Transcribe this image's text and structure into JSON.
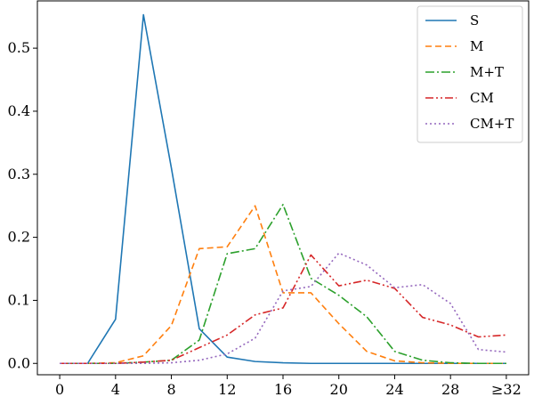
{
  "chart_data": {
    "type": "line",
    "x": [
      0,
      2,
      4,
      6,
      8,
      10,
      12,
      14,
      16,
      18,
      20,
      22,
      24,
      26,
      28,
      30,
      32
    ],
    "xticks": [
      {
        "value": 0,
        "label": "0"
      },
      {
        "value": 4,
        "label": "4"
      },
      {
        "value": 8,
        "label": "8"
      },
      {
        "value": 12,
        "label": "12"
      },
      {
        "value": 16,
        "label": "16"
      },
      {
        "value": 20,
        "label": "20"
      },
      {
        "value": 24,
        "label": "24"
      },
      {
        "value": 28,
        "label": "28"
      },
      {
        "value": 32,
        "label": "≥32"
      }
    ],
    "yticks": [
      {
        "value": 0.0,
        "label": "0.0"
      },
      {
        "value": 0.1,
        "label": "0.1"
      },
      {
        "value": 0.2,
        "label": "0.2"
      },
      {
        "value": 0.3,
        "label": "0.3"
      },
      {
        "value": 0.4,
        "label": "0.4"
      },
      {
        "value": 0.5,
        "label": "0.5"
      }
    ],
    "xlim": [
      -1.6,
      33.6
    ],
    "ylim": [
      -0.018,
      0.575
    ],
    "grid": false,
    "legend_position": "top-right",
    "series": [
      {
        "name": "S",
        "color": "#1f77b4",
        "dash": "solid",
        "values": [
          0.0,
          0.0,
          0.07,
          0.553,
          0.31,
          0.055,
          0.01,
          0.003,
          0.001,
          0.0,
          0.0,
          0.0,
          0.0,
          0.0,
          0.0,
          0.0,
          0.0
        ]
      },
      {
        "name": "M",
        "color": "#ff7f0e",
        "dash": "dashed",
        "values": [
          0.0,
          0.0,
          0.001,
          0.012,
          0.06,
          0.182,
          0.185,
          0.25,
          0.112,
          0.112,
          0.063,
          0.019,
          0.004,
          0.001,
          0.0,
          0.0,
          0.0
        ]
      },
      {
        "name": "M+T",
        "color": "#2ca02c",
        "dash": "dashdot",
        "values": [
          0.0,
          0.0,
          0.0,
          0.002,
          0.005,
          0.037,
          0.174,
          0.182,
          0.252,
          0.135,
          0.108,
          0.074,
          0.019,
          0.005,
          0.001,
          0.0,
          0.0
        ]
      },
      {
        "name": "CM",
        "color": "#d62728",
        "dash": "dashdotdot",
        "values": [
          0.0,
          0.0,
          0.0,
          0.002,
          0.005,
          0.025,
          0.045,
          0.077,
          0.088,
          0.172,
          0.123,
          0.132,
          0.119,
          0.073,
          0.061,
          0.042,
          0.045
        ]
      },
      {
        "name": "CM+T",
        "color": "#9467bd",
        "dash": "dotted",
        "values": [
          0.0,
          0.0,
          0.0,
          0.0,
          0.001,
          0.005,
          0.015,
          0.04,
          0.115,
          0.122,
          0.175,
          0.156,
          0.12,
          0.125,
          0.095,
          0.022,
          0.018
        ]
      }
    ]
  }
}
